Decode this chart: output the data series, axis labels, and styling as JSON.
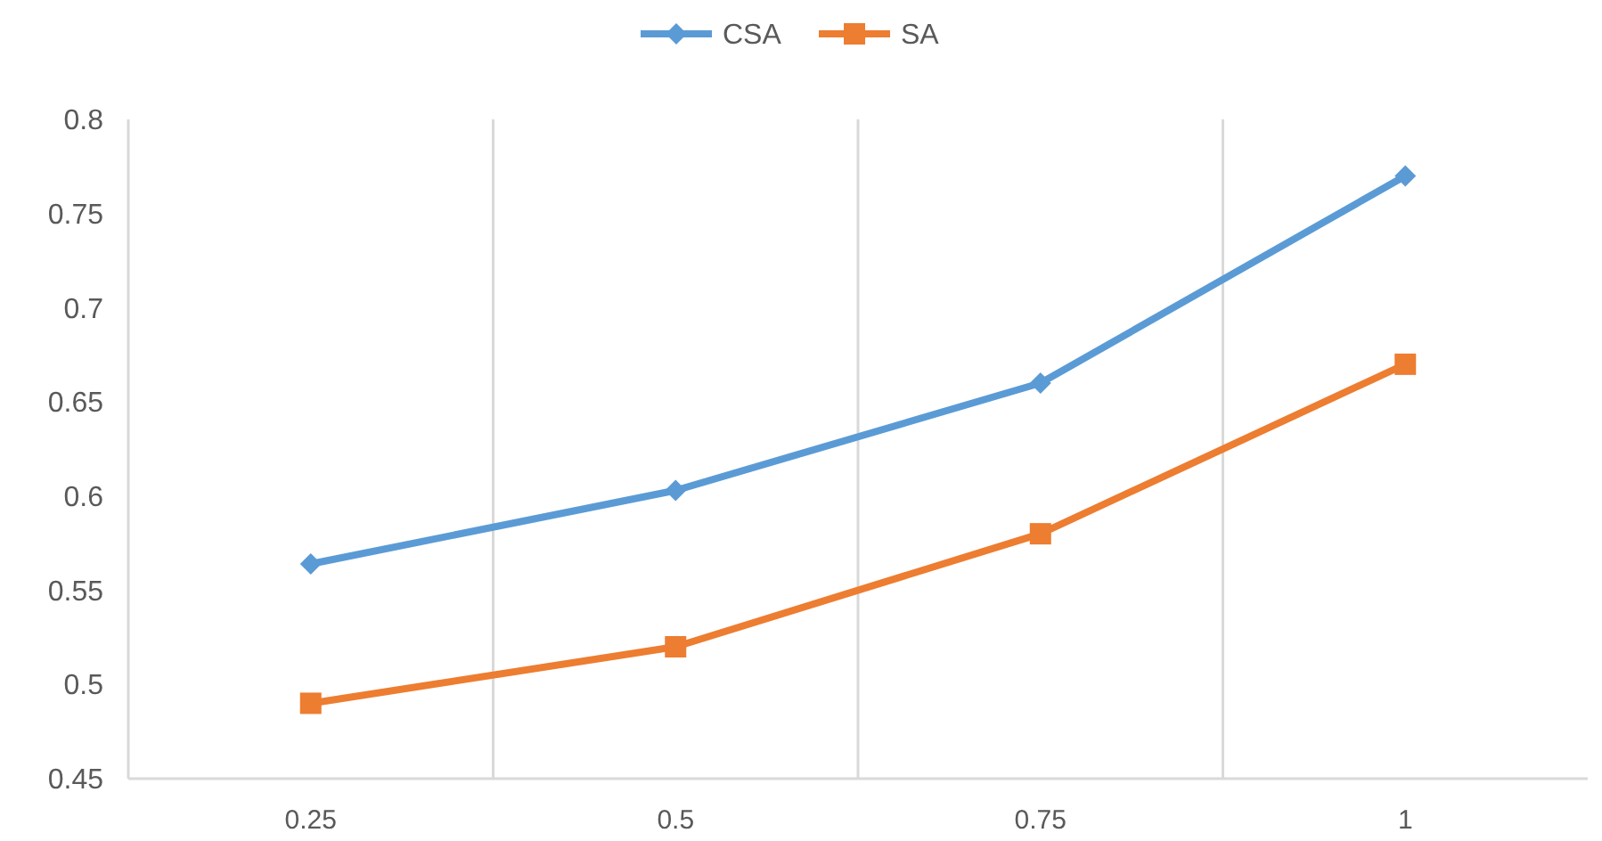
{
  "chart_data": {
    "type": "line",
    "categories": [
      "0.25",
      "0.5",
      "0.75",
      "1"
    ],
    "series": [
      {
        "name": "CSA",
        "color": "#5b9bd5",
        "marker": "diamond",
        "values": [
          0.564,
          0.603,
          0.66,
          0.77
        ]
      },
      {
        "name": "SA",
        "color": "#ed7d31",
        "marker": "square",
        "values": [
          0.49,
          0.52,
          0.58,
          0.67
        ]
      }
    ],
    "ylim": [
      0.45,
      0.8
    ],
    "yticks": [
      0.45,
      0.5,
      0.55,
      0.6,
      0.65,
      0.7,
      0.75,
      0.8
    ],
    "grid": "x",
    "legend": "top",
    "line_style": "solid"
  }
}
